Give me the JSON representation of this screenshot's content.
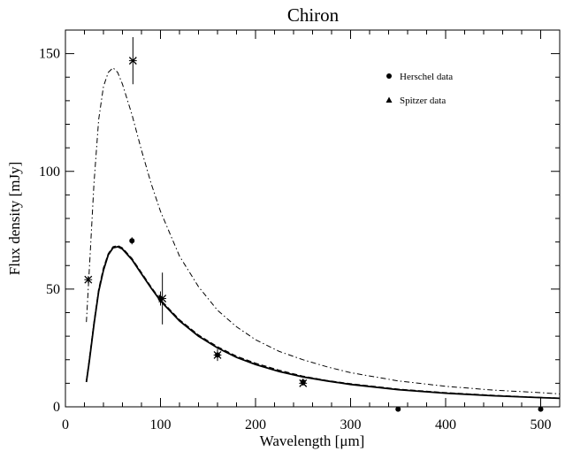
{
  "chart_data": {
    "type": "scatter",
    "title": "Chiron",
    "xlabel": "Wavelength [μm]",
    "ylabel": "Flux density [mJy]",
    "xlim": [
      0,
      520
    ],
    "ylim": [
      0,
      160
    ],
    "xticks": [
      0,
      100,
      200,
      300,
      400,
      500
    ],
    "yticks": [
      0,
      50,
      100,
      150
    ],
    "x_minor_step": 20,
    "y_minor_step": 10,
    "legend_position": "top-right",
    "legend": [
      {
        "marker": "circle",
        "label": "Herschel data"
      },
      {
        "marker": "triangle",
        "label": "Spitzer data"
      }
    ],
    "series": [
      {
        "name": "Herschel data",
        "marker": "circle",
        "points": [
          {
            "x": 70,
            "y": 70.5,
            "err": 1.5
          },
          {
            "x": 100,
            "y": 46,
            "err": 3
          },
          {
            "x": 160,
            "y": 22,
            "err": 2.5
          },
          {
            "x": 250,
            "y": 10.5,
            "err": 1.5
          },
          {
            "x": 350,
            "y": -1,
            "err": 0
          },
          {
            "x": 500,
            "y": -1,
            "err": 0
          }
        ]
      },
      {
        "name": "Spitzer data",
        "marker": "triangle",
        "points": [
          {
            "x": 24,
            "y": 54,
            "err": 1.5
          },
          {
            "x": 71,
            "y": 147,
            "err": 10
          },
          {
            "x": 102,
            "y": 46,
            "err": 11
          },
          {
            "x": 160,
            "y": 22,
            "err": 1.5
          },
          {
            "x": 250,
            "y": 10,
            "err": 1
          }
        ]
      }
    ],
    "model_curves": [
      {
        "style": "dashdot",
        "points": [
          [
            22,
            36
          ],
          [
            26,
            65
          ],
          [
            30,
            95
          ],
          [
            35,
            122
          ],
          [
            40,
            136
          ],
          [
            45,
            142
          ],
          [
            50,
            144
          ],
          [
            55,
            142
          ],
          [
            60,
            137
          ],
          [
            70,
            124
          ],
          [
            80,
            109
          ],
          [
            90,
            95
          ],
          [
            100,
            83
          ],
          [
            120,
            64
          ],
          [
            140,
            51
          ],
          [
            160,
            41
          ],
          [
            180,
            34
          ],
          [
            200,
            28.5
          ],
          [
            225,
            23.5
          ],
          [
            250,
            20
          ],
          [
            275,
            17
          ],
          [
            300,
            14.5
          ],
          [
            350,
            11
          ],
          [
            400,
            8.7
          ],
          [
            450,
            7.1
          ],
          [
            500,
            6
          ],
          [
            520,
            5.5
          ]
        ]
      },
      {
        "style": "dashed",
        "points": [
          [
            22,
            11
          ],
          [
            25,
            20
          ],
          [
            30,
            36
          ],
          [
            35,
            50
          ],
          [
            40,
            59
          ],
          [
            45,
            65
          ],
          [
            50,
            68
          ],
          [
            55,
            68.5
          ],
          [
            60,
            67.5
          ],
          [
            70,
            63
          ],
          [
            80,
            57
          ],
          [
            90,
            51
          ],
          [
            100,
            45.5
          ],
          [
            120,
            37
          ],
          [
            140,
            30.5
          ],
          [
            160,
            25.5
          ],
          [
            180,
            21.5
          ],
          [
            200,
            18.5
          ],
          [
            225,
            15.5
          ],
          [
            250,
            13
          ],
          [
            275,
            11.2
          ],
          [
            300,
            9.8
          ],
          [
            350,
            7.5
          ],
          [
            400,
            6
          ],
          [
            450,
            4.9
          ],
          [
            500,
            4
          ],
          [
            520,
            3.7
          ]
        ]
      },
      {
        "style": "solid",
        "points": [
          [
            22,
            10.5
          ],
          [
            25,
            19
          ],
          [
            30,
            35
          ],
          [
            35,
            49
          ],
          [
            40,
            58
          ],
          [
            45,
            64.5
          ],
          [
            50,
            67.5
          ],
          [
            55,
            68
          ],
          [
            60,
            67
          ],
          [
            70,
            62.5
          ],
          [
            80,
            56.5
          ],
          [
            90,
            50.5
          ],
          [
            100,
            45
          ],
          [
            120,
            36.5
          ],
          [
            140,
            30
          ],
          [
            160,
            25
          ],
          [
            180,
            21
          ],
          [
            200,
            18
          ],
          [
            225,
            15
          ],
          [
            250,
            12.7
          ],
          [
            275,
            11
          ],
          [
            300,
            9.5
          ],
          [
            350,
            7.3
          ],
          [
            400,
            5.8
          ],
          [
            450,
            4.7
          ],
          [
            500,
            3.9
          ],
          [
            520,
            3.6
          ]
        ]
      }
    ]
  }
}
